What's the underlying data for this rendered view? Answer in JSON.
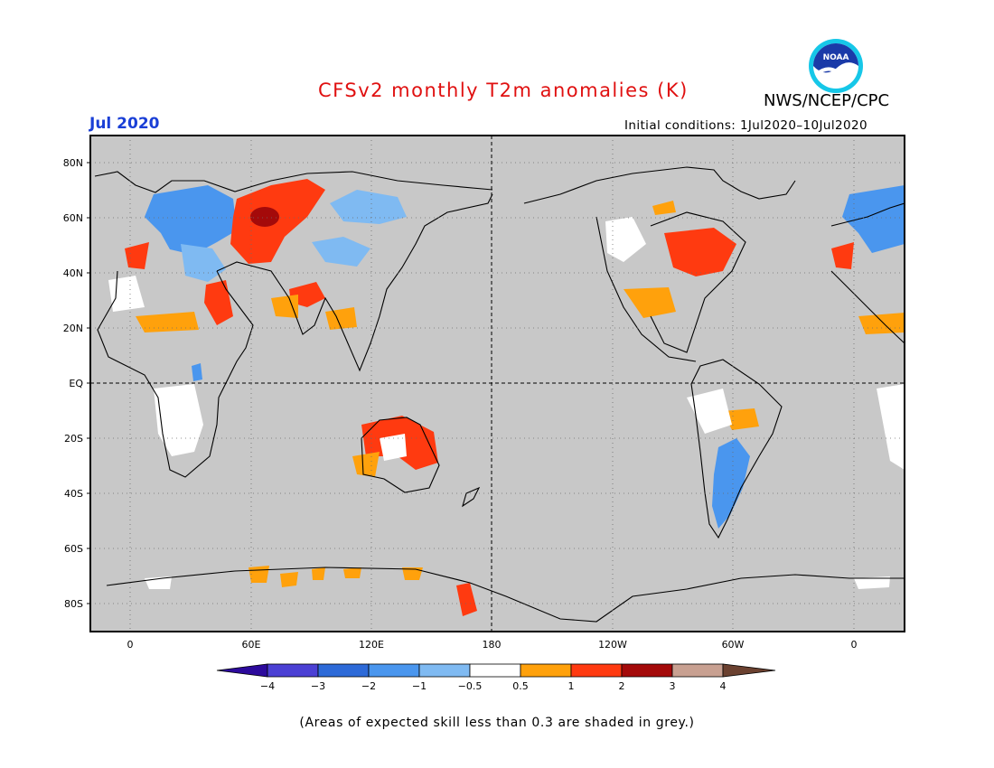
{
  "header": {
    "title": "CFSv2 monthly T2m anomalies (K)",
    "agency": "NWS/NCEP/CPC",
    "month": "Jul 2020",
    "init_conditions": "Initial conditions: 1Jul2020–10Jul2020",
    "logo_text": "NOAA"
  },
  "map": {
    "projection": "equirectangular",
    "lat_labels": [
      "80N",
      "60N",
      "40N",
      "20N",
      "EQ",
      "20S",
      "40S",
      "60S",
      "80S"
    ],
    "lon_labels": [
      "0",
      "60E",
      "120E",
      "180",
      "120W",
      "60W",
      "0"
    ],
    "background_color": "#c8c8c8"
  },
  "colorbar": {
    "tick_labels": [
      "−4",
      "−3",
      "−2",
      "−1",
      "−0.5",
      "0.5",
      "1",
      "2",
      "3",
      "4"
    ],
    "colors": [
      "#2c0a9c",
      "#4b40d4",
      "#2d6ad8",
      "#4a96ee",
      "#7fbaf2",
      "#ffffff",
      "#ffa10c",
      "#ff3a10",
      "#a40a0a",
      "#c8a091",
      "#6b4130"
    ]
  },
  "footnote": "(Areas of expected skill less than 0.3 are shaded in grey.)",
  "colors": {
    "title": "#e01010",
    "month": "#1a3fd6",
    "skill_grey": "#c8c8c8"
  }
}
